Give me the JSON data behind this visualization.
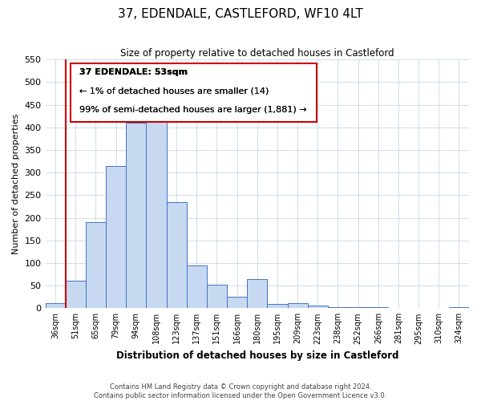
{
  "title": "37, EDENDALE, CASTLEFORD, WF10 4LT",
  "subtitle": "Size of property relative to detached houses in Castleford",
  "xlabel": "Distribution of detached houses by size in Castleford",
  "ylabel": "Number of detached properties",
  "bin_labels": [
    "36sqm",
    "51sqm",
    "65sqm",
    "79sqm",
    "94sqm",
    "108sqm",
    "123sqm",
    "137sqm",
    "151sqm",
    "166sqm",
    "180sqm",
    "195sqm",
    "209sqm",
    "223sqm",
    "238sqm",
    "252sqm",
    "266sqm",
    "281sqm",
    "295sqm",
    "310sqm",
    "324sqm"
  ],
  "bar_heights": [
    12,
    60,
    190,
    315,
    410,
    430,
    235,
    95,
    52,
    25,
    65,
    10,
    12,
    5,
    2,
    3,
    2,
    1,
    1,
    0,
    2
  ],
  "bar_color": "#c6d9f1",
  "bar_edge_color": "#4472c4",
  "property_line_x": 1.0,
  "property_line_color": "#cc0000",
  "ylim": [
    0,
    550
  ],
  "yticks": [
    0,
    50,
    100,
    150,
    200,
    250,
    300,
    350,
    400,
    450,
    500,
    550
  ],
  "annotation_title": "37 EDENDALE: 53sqm",
  "annotation_line1": "← 1% of detached houses are smaller (14)",
  "annotation_line2": "99% of semi-detached houses are larger (1,881) →",
  "annotation_box_color": "#ffffff",
  "annotation_box_edge": "#cc0000",
  "footer_line1": "Contains HM Land Registry data © Crown copyright and database right 2024.",
  "footer_line2": "Contains public sector information licensed under the Open Government Licence v3.0."
}
